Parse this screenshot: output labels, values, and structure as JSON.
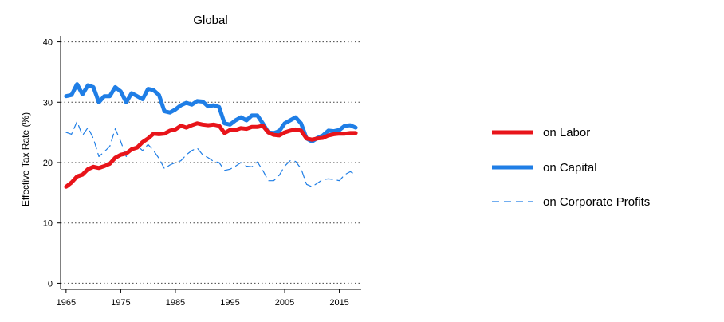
{
  "chart_data": {
    "type": "line",
    "title": "Global",
    "xlabel": "",
    "ylabel": "Effective Tax Rate (%)",
    "xlim": [
      1964,
      2019
    ],
    "ylim": [
      -1,
      41
    ],
    "xticks": [
      1965,
      1975,
      1985,
      1995,
      2005,
      2015
    ],
    "yticks": [
      0,
      10,
      20,
      30,
      40
    ],
    "grid": "horizontal-dotted",
    "legend_position": "right",
    "x": [
      1965,
      1966,
      1967,
      1968,
      1969,
      1970,
      1971,
      1972,
      1973,
      1974,
      1975,
      1976,
      1977,
      1978,
      1979,
      1980,
      1981,
      1982,
      1983,
      1984,
      1985,
      1986,
      1987,
      1988,
      1989,
      1990,
      1991,
      1992,
      1993,
      1994,
      1995,
      1996,
      1997,
      1998,
      1999,
      2000,
      2001,
      2002,
      2003,
      2004,
      2005,
      2006,
      2007,
      2008,
      2009,
      2010,
      2011,
      2012,
      2013,
      2014,
      2015,
      2016,
      2017,
      2018
    ],
    "series": [
      {
        "name": "on Labor",
        "color": "#e8141a",
        "style": "solid-thick",
        "values": [
          16.0,
          16.7,
          17.7,
          18.0,
          18.9,
          19.3,
          19.1,
          19.4,
          19.8,
          20.8,
          21.3,
          21.5,
          22.2,
          22.5,
          23.4,
          24.0,
          24.8,
          24.7,
          24.8,
          25.3,
          25.5,
          26.1,
          25.8,
          26.2,
          26.5,
          26.3,
          26.2,
          26.3,
          26.1,
          24.9,
          25.4,
          25.4,
          25.7,
          25.6,
          25.9,
          25.9,
          26.1,
          25.0,
          24.6,
          24.5,
          25.0,
          25.3,
          25.5,
          25.3,
          24.0,
          23.8,
          24.0,
          24.1,
          24.5,
          24.7,
          24.8,
          24.8,
          24.9,
          24.9
        ]
      },
      {
        "name": "on Capital",
        "color": "#1f7ee6",
        "style": "solid-thick",
        "values": [
          31.0,
          31.2,
          33.0,
          31.3,
          32.8,
          32.5,
          30.0,
          31.0,
          31.0,
          32.5,
          31.8,
          30.0,
          31.5,
          31.0,
          30.5,
          32.2,
          32.0,
          31.2,
          28.5,
          28.3,
          28.8,
          29.5,
          29.9,
          29.6,
          30.2,
          30.1,
          29.3,
          29.5,
          29.2,
          26.5,
          26.3,
          27.0,
          27.5,
          27.0,
          27.8,
          27.8,
          26.5,
          25.0,
          24.9,
          25.2,
          26.5,
          27.0,
          27.5,
          26.5,
          24.0,
          23.5,
          24.1,
          24.5,
          25.3,
          25.2,
          25.4,
          26.1,
          26.2,
          25.8
        ]
      },
      {
        "name": "on Corporate Profits",
        "color": "#1f7ee6",
        "style": "dashed-thin",
        "values": [
          25.0,
          24.7,
          26.8,
          24.5,
          25.8,
          24.0,
          21.0,
          21.8,
          22.7,
          25.6,
          23.5,
          21.0,
          22.4,
          22.8,
          22.0,
          23.0,
          22.0,
          20.7,
          19.0,
          19.6,
          20.0,
          20.3,
          21.3,
          22.0,
          22.4,
          21.3,
          20.8,
          20.2,
          20.0,
          18.7,
          18.9,
          19.4,
          20.0,
          19.4,
          19.3,
          20.1,
          18.7,
          17.0,
          17.0,
          17.9,
          19.4,
          20.3,
          20.2,
          19.0,
          16.4,
          16.0,
          16.6,
          17.2,
          17.3,
          17.2,
          17.0,
          18.0,
          18.5,
          18.0
        ]
      }
    ]
  }
}
